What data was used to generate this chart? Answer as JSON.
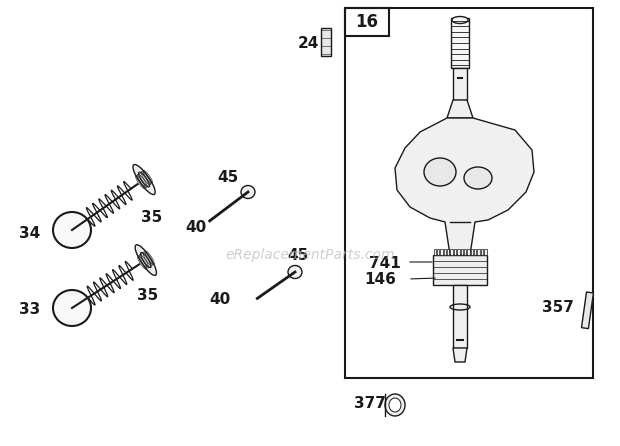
{
  "bg_color": "#ffffff",
  "line_color": "#1a1a1a",
  "watermark_text": "eReplacementParts.com",
  "watermark_color": "#bbbbbb",
  "watermark_fontsize": 10,
  "fig_w": 6.2,
  "fig_h": 4.46,
  "dpi": 100,
  "label_fontsize": 10,
  "label_fontsize_lg": 11
}
